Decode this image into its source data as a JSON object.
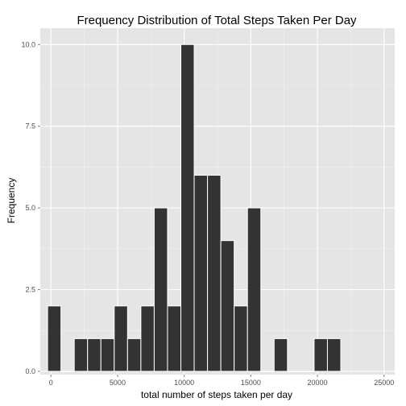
{
  "chart_data": {
    "type": "bar",
    "title": "Frequency Distribution of Total Steps Taken Per Day",
    "xlabel": "total number of steps taken per day",
    "ylabel": "Frequency",
    "xlim": [
      -800,
      25800
    ],
    "ylim": [
      -0.1,
      10.5
    ],
    "x_ticks": [
      0,
      5000,
      10000,
      15000,
      20000,
      25000
    ],
    "x_tick_labels": [
      "0",
      "5000",
      "10000",
      "15000",
      "20000",
      "25000"
    ],
    "y_ticks": [
      0,
      2.5,
      5,
      7.5,
      10
    ],
    "y_tick_labels": [
      "0.0",
      "2.5",
      "5.0",
      "7.5",
      "10.0"
    ],
    "bin_width": 1000,
    "bins": [
      {
        "center": 250,
        "count": 2
      },
      {
        "center": 1250,
        "count": 0
      },
      {
        "center": 2250,
        "count": 1
      },
      {
        "center": 3250,
        "count": 1
      },
      {
        "center": 4250,
        "count": 1
      },
      {
        "center": 5250,
        "count": 2
      },
      {
        "center": 6250,
        "count": 1
      },
      {
        "center": 7250,
        "count": 2
      },
      {
        "center": 8250,
        "count": 5
      },
      {
        "center": 9250,
        "count": 2
      },
      {
        "center": 10250,
        "count": 10
      },
      {
        "center": 11250,
        "count": 6
      },
      {
        "center": 12250,
        "count": 6
      },
      {
        "center": 13250,
        "count": 4
      },
      {
        "center": 14250,
        "count": 2
      },
      {
        "center": 15250,
        "count": 5
      },
      {
        "center": 16250,
        "count": 0
      },
      {
        "center": 17250,
        "count": 1
      },
      {
        "center": 18250,
        "count": 0
      },
      {
        "center": 19250,
        "count": 0
      },
      {
        "center": 20250,
        "count": 1
      },
      {
        "center": 21250,
        "count": 1
      }
    ],
    "grid": true,
    "colors": {
      "panel_background": "#e5e5e5",
      "grid_major": "#ffffff",
      "grid_minor": "#f2f2f2",
      "bar_fill": "#333333",
      "bar_outline": "#ffffff"
    }
  }
}
